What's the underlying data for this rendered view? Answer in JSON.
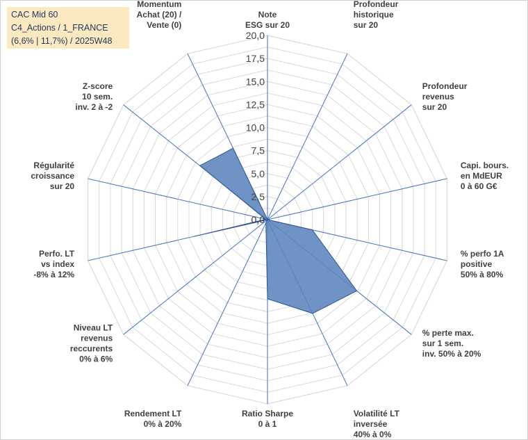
{
  "title_box": {
    "line1": "CAC Mid 60",
    "line2": "C4_Actions / 1_FRANCE",
    "line3": "(6,6% | 11,7%) / 2025W48"
  },
  "colors": {
    "fill": "#5b84bd",
    "stroke": "#2f5597",
    "grid": "#d9d9d9",
    "spoke": "#4472c4",
    "title_bg": "#fde9bf"
  },
  "chart_data": {
    "type": "radar",
    "rlim": [
      0,
      20
    ],
    "ticks": [
      "0,0",
      "2,5",
      "5,0",
      "7,5",
      "10,0",
      "12,5",
      "15,0",
      "17,5",
      "20,0"
    ],
    "grid_rings": 16,
    "categories": [
      [
        "Note",
        "ESG sur 20"
      ],
      [
        "Profondeur",
        "historique",
        "sur 20"
      ],
      [
        "Profondeur",
        "revenus",
        "sur 20"
      ],
      [
        "Capi. bours.",
        "en MdEUR",
        "0 à 60 G€"
      ],
      [
        "% perfo 1A",
        "positive",
        "50% à 80%"
      ],
      [
        "% perte max.",
        "sur 1 sem.",
        "inv. 50% à 20%"
      ],
      [
        "Volatilité LT",
        "inversée",
        "40% à 0%"
      ],
      [
        "Ratio Sharpe",
        "0 à 1"
      ],
      [
        "Rendement LT",
        "0% à 20%"
      ],
      [
        "Niveau LT",
        "revenus",
        "reccurents",
        "0% à 6%"
      ],
      [
        "Perfo. LT",
        "vs index",
        "-8% à 12%"
      ],
      [
        "Régularité",
        "croissance",
        "sur 20"
      ],
      [
        "Z-score",
        "10 sem.",
        "inv. 2 à -2"
      ],
      [
        "Momentum",
        "Achat (20) /",
        "Vente (0)"
      ]
    ],
    "values": [
      0,
      0,
      0,
      0,
      5.0,
      12.4,
      11.3,
      8.6,
      0.4,
      0,
      8.2,
      0.2,
      9.4,
      8.6
    ]
  }
}
